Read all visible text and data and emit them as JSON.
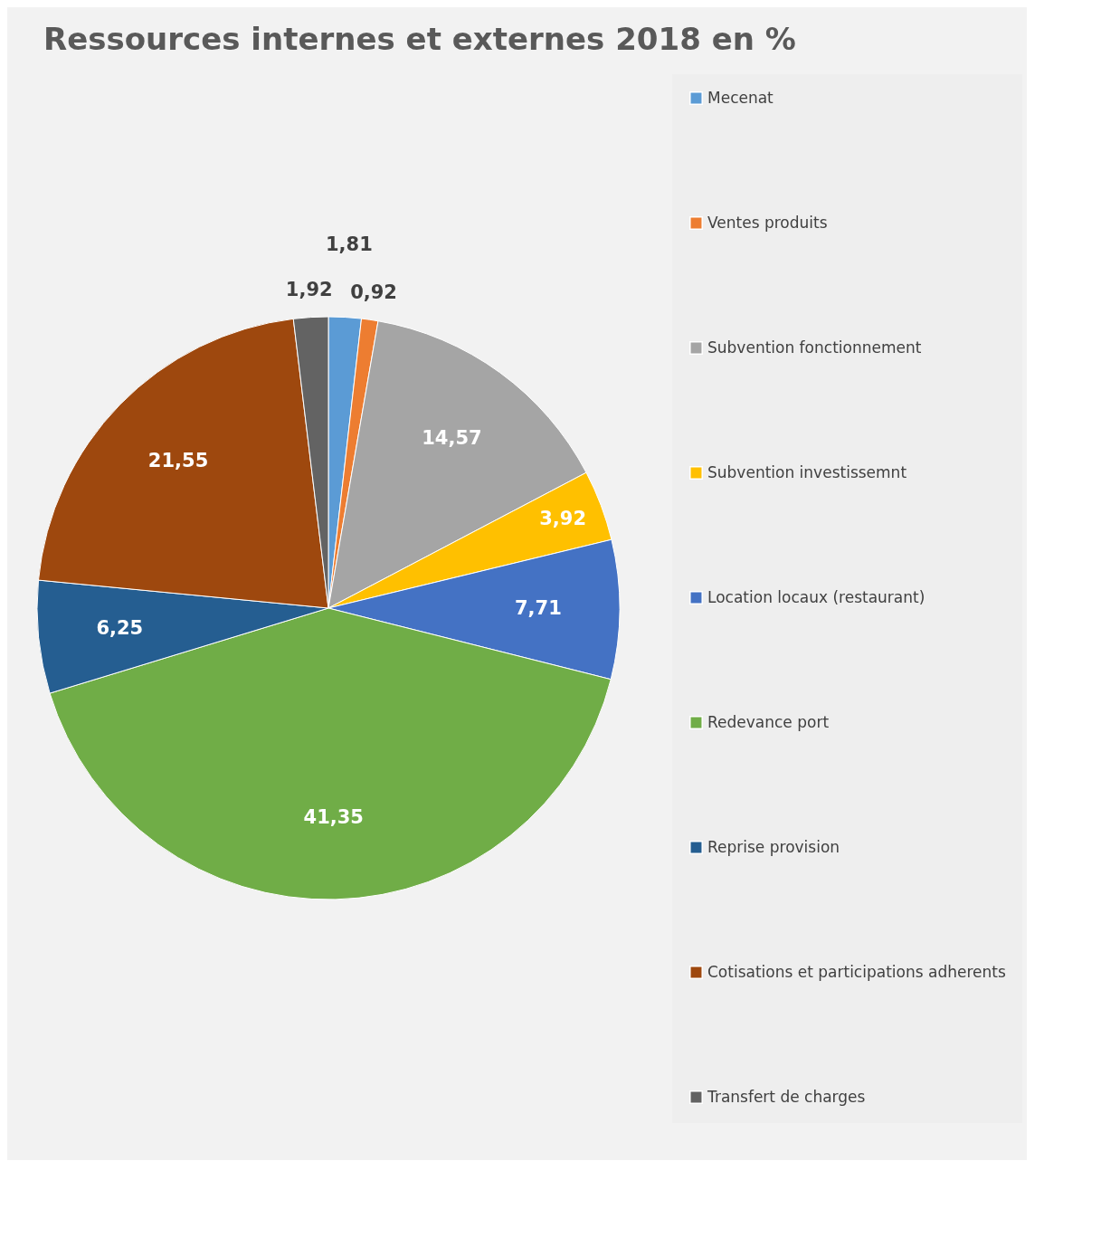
{
  "chart_data": {
    "type": "pie",
    "title": "Ressources internes et externes 2018 en %",
    "categories": [
      "Mecenat",
      "Ventes produits",
      "Subvention fonctionnement",
      "Subvention investissemnt",
      "Location locaux (restaurant)",
      "Redevance port",
      "Reprise provision",
      "Cotisations et participations adherents",
      "Transfert de charges"
    ],
    "values": [
      1.81,
      0.92,
      14.57,
      3.92,
      7.71,
      41.35,
      6.25,
      21.55,
      1.92
    ],
    "colors": [
      "#5b9bd5",
      "#ed7d31",
      "#a5a5a5",
      "#ffc000",
      "#4472c4",
      "#70ad47",
      "#255e91",
      "#9e480e",
      "#636363"
    ],
    "value_labels": [
      "1,81",
      "0,92",
      "14,57",
      "3,92",
      "7,71",
      "41,35",
      "6,25",
      "21,55",
      "1,92"
    ],
    "data_labels": true,
    "legend": "right"
  }
}
